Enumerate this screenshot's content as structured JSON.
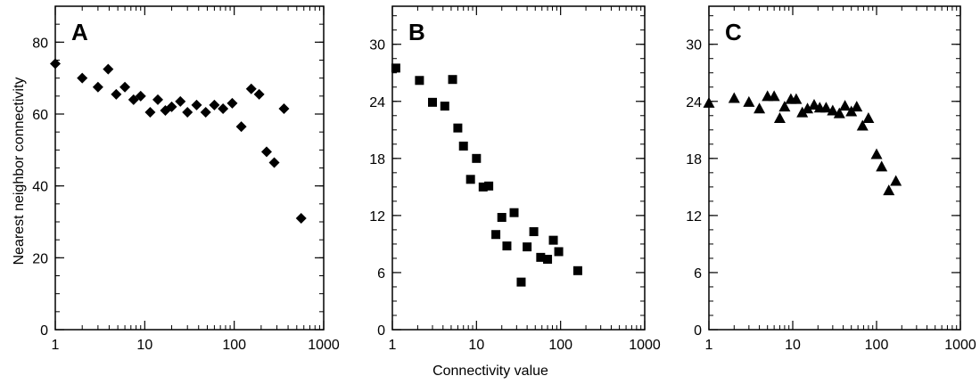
{
  "figure": {
    "shared_ylabel": "Nearest neighbor  connectivity",
    "shared_xlabel": "Connectivity value"
  },
  "chart_data": [
    {
      "type": "scatter",
      "panel_label": "A",
      "marker": "diamond",
      "xscale": "log",
      "xlim": [
        1,
        1000
      ],
      "ylim": [
        0,
        90
      ],
      "x_ticks": [
        1,
        10,
        100,
        1000
      ],
      "x_tick_labels": [
        "1",
        "10",
        "100",
        "1000"
      ],
      "y_ticks": [
        0,
        20,
        40,
        60,
        80
      ],
      "y_tick_labels": [
        "0",
        "20",
        "40",
        "60",
        "80"
      ],
      "y_minor_step": 5,
      "points": [
        [
          1.0,
          74
        ],
        [
          2.0,
          70
        ],
        [
          3.0,
          67.5
        ],
        [
          3.9,
          72.5
        ],
        [
          4.8,
          65.5
        ],
        [
          6.0,
          67.5
        ],
        [
          7.5,
          64
        ],
        [
          9.0,
          65
        ],
        [
          11.5,
          60.5
        ],
        [
          14,
          64
        ],
        [
          17,
          61
        ],
        [
          20,
          62
        ],
        [
          25,
          63.5
        ],
        [
          30,
          60.5
        ],
        [
          38,
          62.5
        ],
        [
          48,
          60.5
        ],
        [
          60,
          62.5
        ],
        [
          75,
          61.5
        ],
        [
          95,
          63
        ],
        [
          120,
          56.5
        ],
        [
          155,
          67
        ],
        [
          190,
          65.5
        ],
        [
          230,
          49.5
        ],
        [
          280,
          46.5
        ],
        [
          360,
          61.5
        ],
        [
          560,
          31
        ]
      ]
    },
    {
      "type": "scatter",
      "panel_label": "B",
      "marker": "square",
      "xscale": "log",
      "xlim": [
        1,
        1000
      ],
      "ylim": [
        0,
        34
      ],
      "x_ticks": [
        1,
        10,
        100,
        1000
      ],
      "x_tick_labels": [
        "1",
        "10",
        "100",
        "1000"
      ],
      "y_ticks": [
        0,
        6,
        12,
        18,
        24,
        30
      ],
      "y_tick_labels": [
        "0",
        "6",
        "12",
        "18",
        "24",
        "30"
      ],
      "y_minor_step": 1.5,
      "points": [
        [
          1.1,
          27.5
        ],
        [
          2.1,
          26.2
        ],
        [
          3.0,
          23.9
        ],
        [
          4.2,
          23.5
        ],
        [
          5.2,
          26.3
        ],
        [
          6.0,
          21.2
        ],
        [
          7.0,
          19.3
        ],
        [
          8.5,
          15.8
        ],
        [
          10,
          18
        ],
        [
          12,
          15
        ],
        [
          14,
          15.1
        ],
        [
          17,
          10
        ],
        [
          20,
          11.8
        ],
        [
          23,
          8.8
        ],
        [
          28,
          12.3
        ],
        [
          34,
          5
        ],
        [
          40,
          8.7
        ],
        [
          48,
          10.3
        ],
        [
          58,
          7.6
        ],
        [
          70,
          7.4
        ],
        [
          82,
          9.4
        ],
        [
          95,
          8.2
        ],
        [
          160,
          6.2
        ]
      ]
    },
    {
      "type": "scatter",
      "panel_label": "C",
      "marker": "triangle",
      "xscale": "log",
      "xlim": [
        1,
        1000
      ],
      "ylim": [
        0,
        34
      ],
      "x_ticks": [
        1,
        10,
        100,
        1000
      ],
      "x_tick_labels": [
        "1",
        "10",
        "100",
        "1000"
      ],
      "y_ticks": [
        0,
        6,
        12,
        18,
        24,
        30
      ],
      "y_tick_labels": [
        "0",
        "6",
        "12",
        "18",
        "24",
        "30"
      ],
      "y_minor_step": 1.5,
      "points": [
        [
          1.0,
          23.8
        ],
        [
          2.0,
          24.3
        ],
        [
          3.0,
          23.9
        ],
        [
          4.0,
          23.2
        ],
        [
          5.0,
          24.5
        ],
        [
          6.0,
          24.5
        ],
        [
          7.0,
          22.2
        ],
        [
          8.0,
          23.4
        ],
        [
          9.5,
          24.2
        ],
        [
          11,
          24.2
        ],
        [
          13,
          22.8
        ],
        [
          15,
          23.2
        ],
        [
          18,
          23.6
        ],
        [
          21,
          23.3
        ],
        [
          25,
          23.3
        ],
        [
          30,
          23.0
        ],
        [
          36,
          22.7
        ],
        [
          42,
          23.5
        ],
        [
          50,
          22.9
        ],
        [
          58,
          23.4
        ],
        [
          68,
          21.4
        ],
        [
          80,
          22.2
        ],
        [
          100,
          18.4
        ],
        [
          115,
          17.1
        ],
        [
          140,
          14.6
        ],
        [
          170,
          15.6
        ]
      ]
    }
  ]
}
